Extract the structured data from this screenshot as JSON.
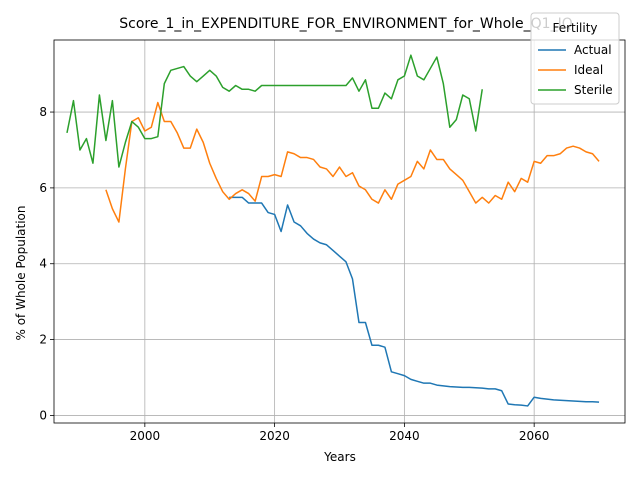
{
  "chart_data": {
    "type": "line",
    "title": "Score_1_in_EXPENDITURE_FOR_ENVIRONMENT_for_Whole_Q1_IQ",
    "xlabel": "Years",
    "ylabel": "% of Whole Population",
    "xlim": [
      1986,
      2074
    ],
    "ylim": [
      -0.2,
      9.9
    ],
    "xticks": [
      2000,
      2020,
      2040,
      2060
    ],
    "yticks": [
      0,
      2,
      4,
      6,
      8
    ],
    "grid": true,
    "legend": {
      "title": "Fertility",
      "placement": "top-right"
    },
    "series": [
      {
        "name": "Actual",
        "color": "#1f77b4",
        "points": [
          [
            2013,
            5.75
          ],
          [
            2015,
            5.75
          ],
          [
            2016,
            5.6
          ],
          [
            2017,
            5.6
          ],
          [
            2018,
            5.6
          ],
          [
            2019,
            5.35
          ],
          [
            2020,
            5.3
          ],
          [
            2021,
            4.85
          ],
          [
            2022,
            5.55
          ],
          [
            2023,
            5.1
          ],
          [
            2024,
            5.0
          ],
          [
            2025,
            4.8
          ],
          [
            2026,
            4.65
          ],
          [
            2027,
            4.55
          ],
          [
            2028,
            4.5
          ],
          [
            2029,
            4.35
          ],
          [
            2030,
            4.2
          ],
          [
            2031,
            4.05
          ],
          [
            2032,
            3.6
          ],
          [
            2033,
            2.45
          ],
          [
            2034,
            2.45
          ],
          [
            2035,
            1.85
          ],
          [
            2036,
            1.85
          ],
          [
            2037,
            1.8
          ],
          [
            2038,
            1.15
          ],
          [
            2039,
            1.1
          ],
          [
            2040,
            1.05
          ],
          [
            2041,
            0.95
          ],
          [
            2042,
            0.9
          ],
          [
            2043,
            0.85
          ],
          [
            2044,
            0.85
          ],
          [
            2045,
            0.8
          ],
          [
            2046,
            0.78
          ],
          [
            2047,
            0.76
          ],
          [
            2048,
            0.75
          ],
          [
            2049,
            0.74
          ],
          [
            2050,
            0.74
          ],
          [
            2051,
            0.73
          ],
          [
            2052,
            0.72
          ],
          [
            2053,
            0.7
          ],
          [
            2054,
            0.7
          ],
          [
            2055,
            0.65
          ],
          [
            2056,
            0.3
          ],
          [
            2057,
            0.28
          ],
          [
            2058,
            0.27
          ],
          [
            2059,
            0.25
          ],
          [
            2060,
            0.48
          ],
          [
            2061,
            0.45
          ],
          [
            2062,
            0.43
          ],
          [
            2063,
            0.41
          ],
          [
            2064,
            0.4
          ],
          [
            2065,
            0.39
          ],
          [
            2066,
            0.38
          ],
          [
            2067,
            0.37
          ],
          [
            2068,
            0.36
          ],
          [
            2069,
            0.36
          ],
          [
            2070,
            0.35
          ]
        ]
      },
      {
        "name": "Ideal",
        "color": "#ff7f0e",
        "points": [
          [
            1994,
            5.95
          ],
          [
            1995,
            5.45
          ],
          [
            1996,
            5.1
          ],
          [
            1997,
            6.5
          ],
          [
            1998,
            7.75
          ],
          [
            1999,
            7.85
          ],
          [
            2000,
            7.5
          ],
          [
            2001,
            7.6
          ],
          [
            2002,
            8.25
          ],
          [
            2003,
            7.75
          ],
          [
            2004,
            7.75
          ],
          [
            2005,
            7.45
          ],
          [
            2006,
            7.05
          ],
          [
            2007,
            7.05
          ],
          [
            2008,
            7.55
          ],
          [
            2009,
            7.2
          ],
          [
            2010,
            6.65
          ],
          [
            2011,
            6.25
          ],
          [
            2012,
            5.9
          ],
          [
            2013,
            5.7
          ],
          [
            2014,
            5.85
          ],
          [
            2015,
            5.95
          ],
          [
            2016,
            5.85
          ],
          [
            2017,
            5.65
          ],
          [
            2018,
            6.3
          ],
          [
            2019,
            6.3
          ],
          [
            2020,
            6.35
          ],
          [
            2021,
            6.3
          ],
          [
            2022,
            6.95
          ],
          [
            2023,
            6.9
          ],
          [
            2024,
            6.8
          ],
          [
            2025,
            6.8
          ],
          [
            2026,
            6.75
          ],
          [
            2027,
            6.55
          ],
          [
            2028,
            6.5
          ],
          [
            2029,
            6.3
          ],
          [
            2030,
            6.55
          ],
          [
            2031,
            6.3
          ],
          [
            2032,
            6.4
          ],
          [
            2033,
            6.05
          ],
          [
            2034,
            5.95
          ],
          [
            2035,
            5.7
          ],
          [
            2036,
            5.6
          ],
          [
            2037,
            5.95
          ],
          [
            2038,
            5.7
          ],
          [
            2039,
            6.1
          ],
          [
            2040,
            6.2
          ],
          [
            2041,
            6.3
          ],
          [
            2042,
            6.7
          ],
          [
            2043,
            6.5
          ],
          [
            2044,
            7.0
          ],
          [
            2045,
            6.75
          ],
          [
            2046,
            6.75
          ],
          [
            2047,
            6.5
          ],
          [
            2048,
            6.35
          ],
          [
            2049,
            6.2
          ],
          [
            2050,
            5.9
          ],
          [
            2051,
            5.6
          ],
          [
            2052,
            5.75
          ],
          [
            2053,
            5.6
          ],
          [
            2054,
            5.8
          ],
          [
            2055,
            5.7
          ],
          [
            2056,
            6.15
          ],
          [
            2057,
            5.9
          ],
          [
            2058,
            6.25
          ],
          [
            2059,
            6.15
          ],
          [
            2060,
            6.7
          ],
          [
            2061,
            6.65
          ],
          [
            2062,
            6.85
          ],
          [
            2063,
            6.85
          ],
          [
            2064,
            6.9
          ],
          [
            2065,
            7.05
          ],
          [
            2066,
            7.1
          ],
          [
            2067,
            7.05
          ],
          [
            2068,
            6.95
          ],
          [
            2069,
            6.9
          ],
          [
            2070,
            6.7
          ]
        ]
      },
      {
        "name": "Sterile",
        "color": "#2ca02c",
        "points": [
          [
            1988,
            7.45
          ],
          [
            1989,
            8.3
          ],
          [
            1990,
            7.0
          ],
          [
            1991,
            7.3
          ],
          [
            1992,
            6.65
          ],
          [
            1993,
            8.45
          ],
          [
            1994,
            7.25
          ],
          [
            1995,
            8.3
          ],
          [
            1996,
            6.55
          ],
          [
            1997,
            7.2
          ],
          [
            1998,
            7.75
          ],
          [
            1999,
            7.6
          ],
          [
            2000,
            7.3
          ],
          [
            2001,
            7.3
          ],
          [
            2002,
            7.35
          ],
          [
            2003,
            8.75
          ],
          [
            2004,
            9.1
          ],
          [
            2005,
            9.15
          ],
          [
            2006,
            9.2
          ],
          [
            2007,
            8.95
          ],
          [
            2008,
            8.8
          ],
          [
            2009,
            8.95
          ],
          [
            2010,
            9.1
          ],
          [
            2011,
            8.95
          ],
          [
            2012,
            8.65
          ],
          [
            2013,
            8.55
          ],
          [
            2014,
            8.7
          ],
          [
            2015,
            8.6
          ],
          [
            2016,
            8.6
          ],
          [
            2017,
            8.55
          ],
          [
            2018,
            8.7
          ],
          [
            2019,
            8.7
          ],
          [
            2020,
            8.7
          ],
          [
            2021,
            8.7
          ],
          [
            2022,
            8.7
          ],
          [
            2023,
            8.7
          ],
          [
            2024,
            8.7
          ],
          [
            2025,
            8.7
          ],
          [
            2026,
            8.7
          ],
          [
            2027,
            8.7
          ],
          [
            2028,
            8.7
          ],
          [
            2029,
            8.7
          ],
          [
            2030,
            8.7
          ],
          [
            2031,
            8.7
          ],
          [
            2032,
            8.9
          ],
          [
            2033,
            8.55
          ],
          [
            2034,
            8.85
          ],
          [
            2035,
            8.1
          ],
          [
            2036,
            8.1
          ],
          [
            2037,
            8.5
          ],
          [
            2038,
            8.35
          ],
          [
            2039,
            8.85
          ],
          [
            2040,
            8.95
          ],
          [
            2041,
            9.5
          ],
          [
            2042,
            8.95
          ],
          [
            2043,
            8.85
          ],
          [
            2044,
            9.15
          ],
          [
            2045,
            9.45
          ],
          [
            2046,
            8.75
          ],
          [
            2047,
            7.6
          ],
          [
            2048,
            7.8
          ],
          [
            2049,
            8.45
          ],
          [
            2050,
            8.35
          ],
          [
            2051,
            7.5
          ],
          [
            2052,
            8.6
          ]
        ]
      }
    ]
  }
}
